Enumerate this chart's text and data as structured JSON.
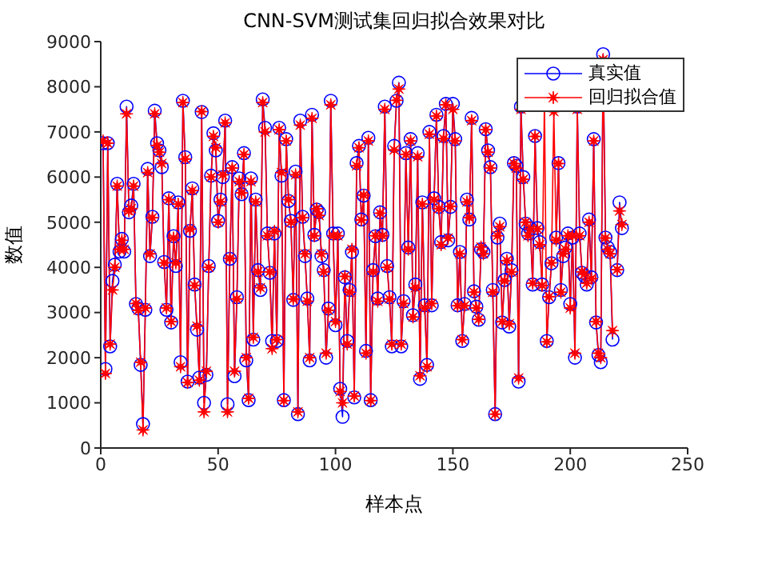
{
  "chart_data": {
    "type": "line",
    "title": "CNN-SVM测试集回归拟合效果对比",
    "xlabel": "样本点",
    "ylabel": "数值",
    "xlim": [
      0,
      250
    ],
    "xticks": [
      0,
      50,
      100,
      150,
      200,
      250
    ],
    "ylim": [
      0,
      9000
    ],
    "yticks": [
      0,
      1000,
      2000,
      3000,
      4000,
      5000,
      6000,
      7000,
      8000,
      9000
    ],
    "grid": false,
    "legend": "top right",
    "x": [
      1,
      2,
      3,
      4,
      5,
      6,
      7,
      8,
      9,
      10,
      11,
      12,
      13,
      14,
      15,
      16,
      17,
      18,
      19,
      20,
      21,
      22,
      23,
      24,
      25,
      26,
      27,
      28,
      29,
      30,
      31,
      32,
      33,
      34,
      35,
      36,
      37,
      38,
      39,
      40,
      41,
      42,
      43,
      44,
      45,
      46,
      47,
      48,
      49,
      50,
      51,
      52,
      53,
      54,
      55,
      56,
      57,
      58,
      59,
      60,
      61,
      62,
      63,
      64,
      65,
      66,
      67,
      68,
      69,
      70,
      71,
      72,
      73,
      74,
      75,
      76,
      77,
      78,
      79,
      80,
      81,
      82,
      83,
      84,
      85,
      86,
      87,
      88,
      89,
      90,
      91,
      92,
      93,
      94,
      95,
      96,
      97,
      98,
      99,
      100,
      101,
      102,
      103,
      104,
      105,
      106,
      107,
      108,
      109,
      110,
      111,
      112,
      113,
      114,
      115,
      116,
      117,
      118,
      119,
      120,
      121,
      122,
      123,
      124,
      125,
      126,
      127,
      128,
      129,
      130,
      131,
      132,
      133,
      134,
      135,
      136,
      137,
      138,
      139,
      140,
      141,
      142,
      143,
      144,
      145,
      146,
      147,
      148,
      149,
      150,
      151,
      152,
      153,
      154,
      155,
      156,
      157,
      158,
      159,
      160,
      161,
      162,
      163,
      164,
      165,
      166,
      167,
      168,
      169,
      170,
      171,
      172,
      173,
      174,
      175,
      176,
      177,
      178,
      179,
      180,
      181,
      182,
      183,
      184,
      185,
      186,
      187,
      188,
      189,
      190,
      191,
      192,
      193,
      194,
      195,
      196,
      197,
      198,
      199,
      200,
      201,
      202,
      203,
      204,
      205,
      206,
      207,
      208,
      209,
      210,
      211,
      212,
      213,
      214,
      215,
      216,
      217,
      218,
      219,
      220,
      221,
      222
    ],
    "series": [
      {
        "name": "真实值",
        "color": "#0000ff",
        "marker": "circle",
        "values": [
          6750,
          1750,
          6750,
          2250,
          3700,
          4060,
          5850,
          4350,
          4630,
          4350,
          7560,
          5220,
          5370,
          5850,
          3190,
          3090,
          1840,
          530,
          3060,
          6180,
          4250,
          5120,
          7470,
          6750,
          6590,
          6220,
          4120,
          3060,
          5530,
          2780,
          4690,
          4030,
          5440,
          1900,
          7690,
          6440,
          1470,
          4810,
          5750,
          3620,
          2620,
          1560,
          7440,
          1000,
          1620,
          4030,
          6030,
          6970,
          6590,
          5030,
          5500,
          6000,
          7250,
          970,
          4190,
          6220,
          1590,
          3340,
          5970,
          5620,
          6530,
          1940,
          1060,
          5970,
          2400,
          5500,
          3940,
          3500,
          7720,
          7090,
          4750,
          3880,
          2370,
          4750,
          2370,
          7090,
          6030,
          1060,
          6840,
          5470,
          5030,
          3280,
          6120,
          750,
          7250,
          5120,
          4250,
          3310,
          1940,
          7380,
          4720,
          5280,
          5220,
          4250,
          3940,
          2000,
          3090,
          7690,
          4750,
          2720,
          4750,
          1310,
          690,
          3780,
          2370,
          3500,
          4340,
          1120,
          6310,
          6690,
          5060,
          5590,
          2150,
          6870,
          1060,
          3940,
          4690,
          3310,
          5220,
          4720,
          7560,
          4030,
          3340,
          2250,
          6690,
          7690,
          8090,
          2250,
          3250,
          6530,
          4440,
          6840,
          2940,
          3620,
          6530,
          1530,
          5440,
          3160,
          1840,
          7000,
          3160,
          5530,
          7380,
          5340,
          4560,
          6910,
          7620,
          4600,
          5340,
          7620,
          6840,
          3160,
          4340,
          2370,
          3190,
          5500,
          5060,
          7310,
          3470,
          3130,
          2840,
          4400,
          4340,
          7060,
          6590,
          6220,
          3500,
          750,
          4660,
          4970,
          2780,
          3720,
          4190,
          2690,
          3940,
          6310,
          6250,
          1470,
          7560,
          6000,
          4970,
          4750,
          4870,
          3620,
          6910,
          4870,
          4560,
          3620,
          null,
          2370,
          3340,
          4090,
          null,
          4660,
          6310,
          3500,
          4250,
          4440,
          4750,
          3190,
          4660,
          2000,
          7560,
          4750,
          3880,
          3810,
          3620,
          5060,
          3780,
          6840,
          2780,
          2060,
          1900,
          8720,
          4660,
          4440,
          4340,
          2400,
          null,
          3940,
          5440,
          4870
        ]
      },
      {
        "name": "回归拟合值",
        "color": "#ff0000",
        "marker": "star",
        "values": [
          6800,
          1650,
          6750,
          2300,
          3500,
          4000,
          5800,
          4400,
          4600,
          4400,
          7400,
          5250,
          5300,
          5800,
          3200,
          3050,
          1900,
          400,
          3100,
          6100,
          4300,
          5100,
          7400,
          6700,
          6550,
          6300,
          4100,
          3100,
          5500,
          2800,
          4650,
          4100,
          5400,
          1800,
          7650,
          6400,
          1450,
          4850,
          5700,
          3600,
          2700,
          1500,
          7450,
          800,
          1700,
          4000,
          6000,
          6900,
          6650,
          5000,
          5450,
          6050,
          7200,
          800,
          4200,
          6200,
          1700,
          3300,
          5900,
          5650,
          6500,
          2000,
          1100,
          5900,
          2450,
          5450,
          3900,
          3550,
          7650,
          7000,
          4700,
          3900,
          2200,
          4800,
          2400,
          7050,
          6100,
          1050,
          6800,
          5500,
          5000,
          3300,
          6050,
          800,
          7150,
          5100,
          4300,
          3250,
          2000,
          7300,
          4700,
          5300,
          5150,
          4300,
          3900,
          2100,
          3050,
          7600,
          4700,
          2800,
          4700,
          1250,
          1000,
          3800,
          2300,
          3450,
          4400,
          1150,
          6250,
          6650,
          5050,
          5600,
          2100,
          6800,
          1050,
          3900,
          4700,
          3250,
          5200,
          4700,
          7500,
          4000,
          3300,
          2300,
          6600,
          7700,
          7950,
          2300,
          3200,
          6500,
          4400,
          6800,
          2900,
          3550,
          6450,
          1600,
          5400,
          3100,
          1800,
          6950,
          3200,
          5500,
          7350,
          5300,
          4500,
          6850,
          7600,
          4650,
          5350,
          7500,
          6800,
          3150,
          4300,
          2400,
          3150,
          5450,
          5100,
          7250,
          3450,
          3100,
          2850,
          4450,
          4300,
          7050,
          6550,
          6200,
          3450,
          750,
          4700,
          4900,
          2800,
          3700,
          4150,
          2750,
          3900,
          6300,
          6200,
          1550,
          7500,
          5950,
          5000,
          4700,
          4850,
          3650,
          6900,
          4850,
          4500,
          3600,
          7700,
          2350,
          3350,
          4100,
          7450,
          4600,
          6300,
          3450,
          4300,
          4400,
          4700,
          3100,
          4700,
          2100,
          7500,
          4700,
          3900,
          3850,
          3650,
          5000,
          3750,
          6800,
          2800,
          2100,
          2000,
          8600,
          4650,
          4400,
          4300,
          2600,
          null,
          3950,
          5250,
          4950
        ]
      }
    ]
  }
}
